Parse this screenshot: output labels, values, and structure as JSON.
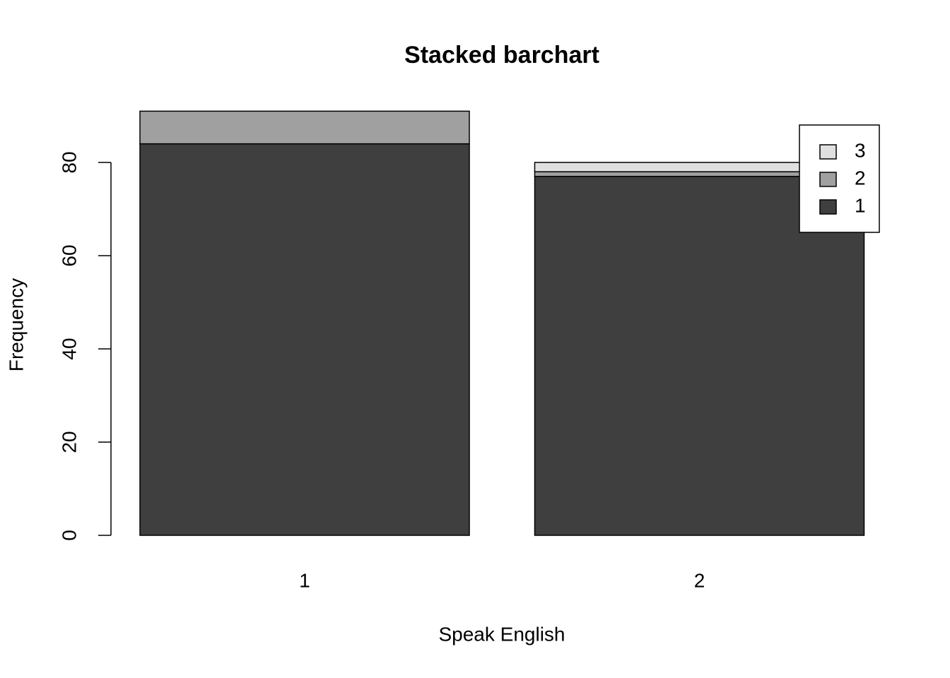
{
  "chart_data": {
    "type": "bar",
    "stacked": true,
    "title": "Stacked barchart",
    "x_label": "Speak English",
    "y_label": "Frequency",
    "categories": [
      "1",
      "2"
    ],
    "series": [
      {
        "name": "1",
        "color": "#3f3f3f",
        "values": [
          84,
          77
        ]
      },
      {
        "name": "2",
        "color": "#a0a0a0",
        "values": [
          7,
          1
        ]
      },
      {
        "name": "3",
        "color": "#e0e0e0",
        "values": [
          0,
          2
        ]
      }
    ],
    "ylim": [
      0,
      95
    ],
    "yticks": [
      0,
      20,
      40,
      60,
      80
    ],
    "grid": false,
    "legend": "topright"
  }
}
